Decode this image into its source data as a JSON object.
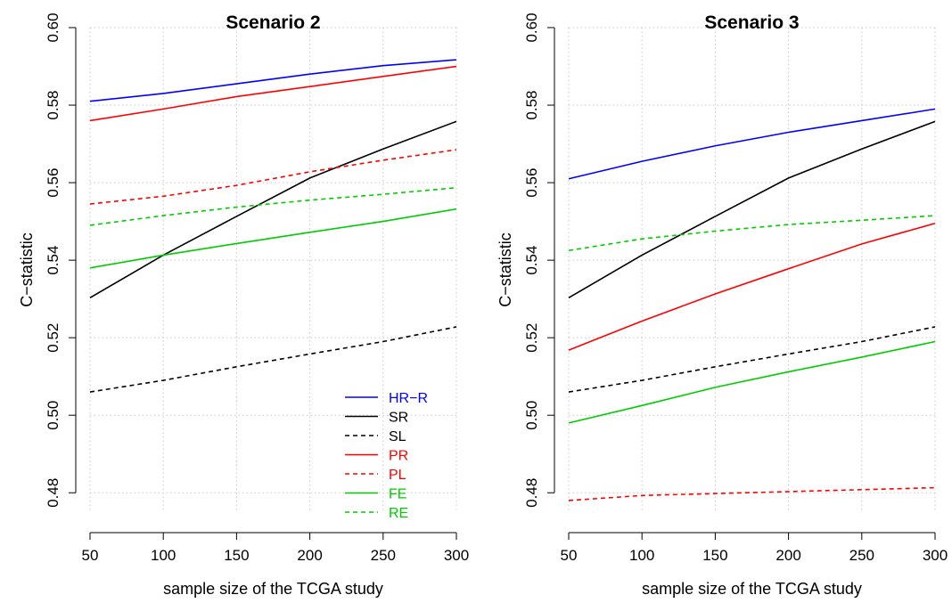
{
  "chart_data": [
    {
      "type": "line",
      "title": "Scenario 2",
      "xlabel": "sample size of the TCGA study",
      "ylabel": "C−statistic",
      "x": [
        50,
        100,
        150,
        200,
        250,
        300
      ],
      "xticks": [
        "50",
        "100",
        "150",
        "200",
        "250",
        "300"
      ],
      "yticks": [
        "0.48",
        "0.50",
        "0.52",
        "0.54",
        "0.56",
        "0.58",
        "0.60"
      ],
      "xlim": [
        50,
        300
      ],
      "ylim": [
        0.475,
        0.6
      ],
      "grid": true,
      "legend": "bottom-right",
      "series": [
        {
          "name": "HR−R",
          "color": "#0000ff",
          "dash": "solid",
          "values": [
            0.581,
            0.583,
            0.5855,
            0.588,
            0.5902,
            0.5917
          ]
        },
        {
          "name": "SR",
          "color": "#000000",
          "dash": "solid",
          "values": [
            0.5303,
            0.5413,
            0.5513,
            0.5612,
            0.5687,
            0.5758
          ]
        },
        {
          "name": "SL",
          "color": "#000000",
          "dash": "dashed",
          "values": [
            0.506,
            0.509,
            0.5125,
            0.5158,
            0.519,
            0.5228
          ]
        },
        {
          "name": "PR",
          "color": "#ff0000",
          "dash": "solid",
          "values": [
            0.576,
            0.579,
            0.5822,
            0.5848,
            0.5874,
            0.59
          ]
        },
        {
          "name": "PL",
          "color": "#ff0000",
          "dash": "dashed",
          "values": [
            0.5545,
            0.5565,
            0.5593,
            0.5628,
            0.5658,
            0.5685
          ]
        },
        {
          "name": "FE",
          "color": "#00cc00",
          "dash": "solid",
          "values": [
            0.538,
            0.5413,
            0.5443,
            0.5472,
            0.55,
            0.5532
          ]
        },
        {
          "name": "RE",
          "color": "#00cc00",
          "dash": "dashed",
          "values": [
            0.549,
            0.5515,
            0.5537,
            0.5555,
            0.557,
            0.5587
          ]
        }
      ]
    },
    {
      "type": "line",
      "title": "Scenario 3",
      "xlabel": "sample size of the TCGA study",
      "ylabel": "C−statistic",
      "x": [
        50,
        100,
        150,
        200,
        250,
        300
      ],
      "xticks": [
        "50",
        "100",
        "150",
        "200",
        "250",
        "300"
      ],
      "yticks": [
        "0.48",
        "0.50",
        "0.52",
        "0.54",
        "0.56",
        "0.58",
        "0.60"
      ],
      "xlim": [
        50,
        300
      ],
      "ylim": [
        0.475,
        0.6
      ],
      "grid": true,
      "legend": "",
      "series": [
        {
          "color": "#0000ff",
          "dash": "solid",
          "values": [
            0.561,
            0.5655,
            0.5695,
            0.573,
            0.576,
            0.579
          ]
        },
        {
          "color": "#000000",
          "dash": "solid",
          "values": [
            0.5303,
            0.5413,
            0.5513,
            0.5612,
            0.5687,
            0.5758
          ]
        },
        {
          "color": "#000000",
          "dash": "dashed",
          "values": [
            0.506,
            0.509,
            0.5125,
            0.5158,
            0.519,
            0.5228
          ]
        },
        {
          "color": "#ff0000",
          "dash": "solid",
          "values": [
            0.5168,
            0.5243,
            0.5313,
            0.5378,
            0.5442,
            0.5495
          ]
        },
        {
          "color": "#ff0000",
          "dash": "dashed",
          "values": [
            0.478,
            0.4793,
            0.4798,
            0.4803,
            0.4808,
            0.4813
          ]
        },
        {
          "color": "#00cc00",
          "dash": "solid",
          "values": [
            0.498,
            0.5025,
            0.5072,
            0.5112,
            0.515,
            0.519
          ]
        },
        {
          "color": "#00cc00",
          "dash": "dashed",
          "values": [
            0.5425,
            0.5455,
            0.5475,
            0.5492,
            0.5503,
            0.5515
          ]
        }
      ]
    }
  ]
}
